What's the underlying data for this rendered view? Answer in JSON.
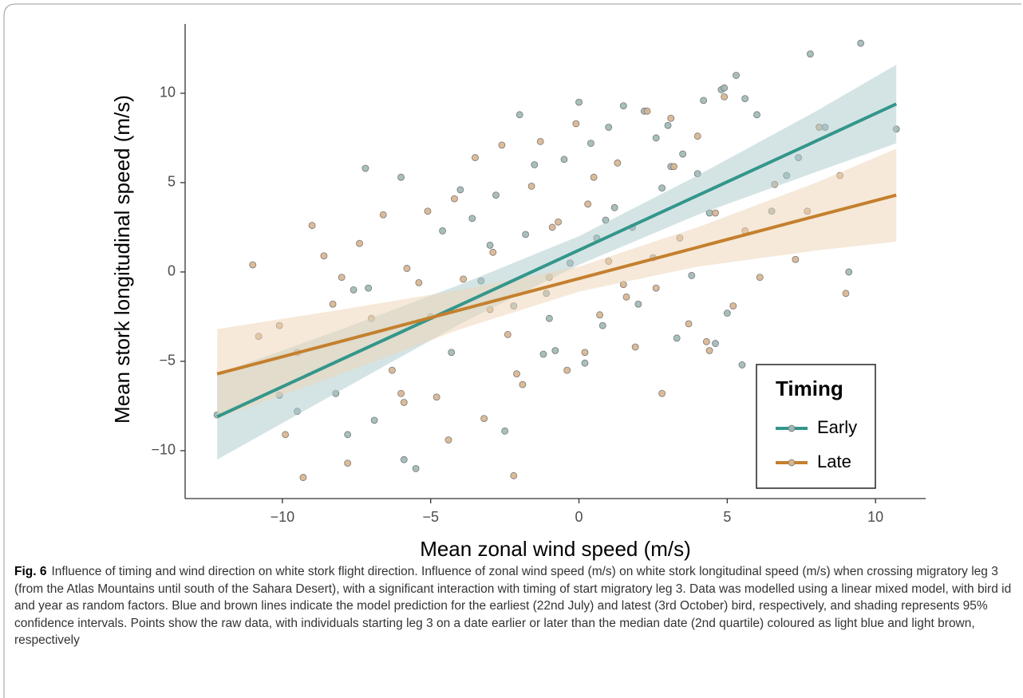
{
  "chart_data": {
    "type": "scatter",
    "xlabel": "Mean zonal wind speed (m/s)",
    "ylabel": "Mean stork longitudinal speed (m/s)",
    "xlim": [
      -13.28,
      11.69
    ],
    "ylim": [
      -12.68,
      13.88
    ],
    "xticks": [
      {
        "value": -10,
        "label": "−10"
      },
      {
        "value": -5,
        "label": "−5"
      },
      0,
      5,
      10
    ],
    "yticks": [
      {
        "value": -10,
        "label": "−10"
      },
      {
        "value": -5,
        "label": "−5"
      },
      0,
      5,
      10
    ],
    "grid": false,
    "legend_title": "Timing",
    "legend_position": "bottom-right",
    "series": [
      {
        "name": "Early",
        "color": "#33968b",
        "point_color": "#9db8b6",
        "band_color": "#a9c9cb",
        "x": [
          -12.2,
          -10.1,
          -9.5,
          -8.2,
          -7.8,
          -7.6,
          -7.2,
          -6.9,
          -6.0,
          -5.9,
          -5.5,
          -5.0,
          -4.6,
          -4.3,
          -4.0,
          -3.6,
          -3.3,
          -3.0,
          -2.8,
          -2.5,
          -2.2,
          -2.0,
          -1.8,
          -1.5,
          -1.2,
          -1.0,
          -0.8,
          -0.5,
          -0.3,
          0,
          0.2,
          0.4,
          0.6,
          0.8,
          1.0,
          1.2,
          1.5,
          1.8,
          2.0,
          2.2,
          2.5,
          2.8,
          3.0,
          3.3,
          3.5,
          3.8,
          4.0,
          4.2,
          4.4,
          4.6,
          4.8,
          5.0,
          5.3,
          5.5,
          5.6,
          6.0,
          6.5,
          7.0,
          7.4,
          7.8,
          8.3,
          9.1,
          9.5,
          10.7,
          -7.1,
          -1.1,
          0.9,
          2.6,
          4.9,
          3.1
        ],
        "values": [
          -8.0,
          -6.9,
          -7.8,
          -6.8,
          -9.1,
          -1.0,
          5.8,
          -8.3,
          5.3,
          -10.5,
          -11.0,
          -2.5,
          2.3,
          -4.5,
          4.6,
          3.0,
          -0.5,
          1.5,
          4.3,
          -8.9,
          -1.9,
          8.8,
          2.1,
          6.0,
          -4.6,
          -2.6,
          -4.4,
          6.3,
          0.5,
          9.5,
          -5.1,
          7.2,
          1.9,
          -3.0,
          8.1,
          3.6,
          9.3,
          2.5,
          -1.8,
          9.0,
          0.8,
          4.7,
          8.2,
          -3.7,
          6.6,
          -0.2,
          5.5,
          9.6,
          3.3,
          -4.0,
          10.2,
          -2.3,
          11.0,
          -5.2,
          9.7,
          8.8,
          3.4,
          5.4,
          6.4,
          12.2,
          8.1,
          0.0,
          12.8,
          8.0,
          -0.9,
          -1.2,
          2.9,
          7.5,
          10.3,
          5.9
        ],
        "fit_x": [
          -12.2,
          -8,
          -4,
          0,
          4,
          8,
          10.7
        ],
        "fit": [
          -8.1,
          -4.89,
          -1.84,
          1.22,
          4.28,
          7.33,
          9.4
        ],
        "ci_lower": [
          -10.5,
          -6.6,
          -2.9,
          0.4,
          3.2,
          5.6,
          7.2
        ],
        "ci_upper": [
          -5.7,
          -3.2,
          -0.7,
          2.0,
          5.4,
          9.0,
          11.6
        ]
      },
      {
        "name": "Late",
        "color": "#c4802e",
        "point_color": "#d9b48d",
        "band_color": "#eed4b4",
        "x": [
          -11.0,
          -10.8,
          -10.1,
          -9.9,
          -9.3,
          -9.0,
          -8.6,
          -8.3,
          -8.0,
          -7.8,
          -7.4,
          -7.0,
          -6.6,
          -6.3,
          -6.0,
          -5.8,
          -5.4,
          -5.1,
          -4.8,
          -4.4,
          -4.2,
          -3.9,
          -3.5,
          -3.2,
          -2.9,
          -2.6,
          -2.4,
          -2.2,
          -1.9,
          -1.6,
          -1.3,
          -1.0,
          -0.7,
          -0.4,
          -0.1,
          0.2,
          0.5,
          0.7,
          1.0,
          1.3,
          1.6,
          1.9,
          2.3,
          2.6,
          2.8,
          3.1,
          3.4,
          3.7,
          4.0,
          4.3,
          4.6,
          4.9,
          5.2,
          5.6,
          6.1,
          6.6,
          7.3,
          7.7,
          8.1,
          8.8,
          9.0,
          -9.5,
          -5.9,
          -3.0,
          -0.9,
          1.5,
          3.2,
          4.4,
          -2.1,
          0.3
        ],
        "values": [
          0.4,
          -3.6,
          -3.0,
          -9.1,
          -11.5,
          2.6,
          0.9,
          -1.8,
          -0.3,
          -10.7,
          1.6,
          -2.6,
          3.2,
          -5.5,
          -6.8,
          0.2,
          -0.6,
          3.4,
          -7.0,
          -9.4,
          4.1,
          -0.4,
          6.4,
          -8.2,
          1.1,
          7.1,
          -3.5,
          -11.4,
          -6.3,
          4.8,
          7.3,
          -0.3,
          2.8,
          -5.5,
          8.3,
          -4.5,
          5.3,
          -2.4,
          0.6,
          6.1,
          -1.4,
          -4.2,
          9.0,
          -0.9,
          -6.8,
          8.6,
          1.9,
          -2.9,
          7.6,
          -3.9,
          3.3,
          9.8,
          -1.9,
          2.3,
          -0.3,
          4.9,
          0.7,
          3.4,
          8.1,
          5.4,
          -1.2,
          -4.5,
          -7.3,
          -2.1,
          2.5,
          -0.7,
          5.9,
          -4.4,
          -5.7,
          3.8
        ],
        "fit_x": [
          -12.2,
          -8,
          -4,
          0,
          4,
          8,
          10.7
        ],
        "fit": [
          -5.7,
          -3.87,
          -2.12,
          -0.37,
          1.38,
          3.13,
          4.3
        ],
        "ci_lower": [
          -8.2,
          -5.7,
          -3.2,
          -1.1,
          0.3,
          1.2,
          1.7
        ],
        "ci_upper": [
          -3.2,
          -2.1,
          -1.0,
          0.3,
          2.5,
          5.0,
          6.9
        ]
      }
    ]
  },
  "caption": {
    "label": "Fig. 6",
    "text": "Influence of timing and wind direction on white stork flight direction. Influence of zonal wind speed (m/s) on white stork longitudinal speed (m/s) when crossing migratory leg 3 (from the Atlas Mountains until south of the Sahara Desert), with a significant interaction with timing of start migratory leg 3. Data was modelled using a linear mixed model, with bird id and year as random factors. Blue and brown lines indicate the model prediction for the earliest (22nd July) and latest (3rd October) bird, respectively, and shading represents 95% confidence intervals. Points show the raw data, with individuals starting leg 3 on a date earlier or later than the median date (2nd quartile) coloured as light blue and light brown, respectively"
  }
}
